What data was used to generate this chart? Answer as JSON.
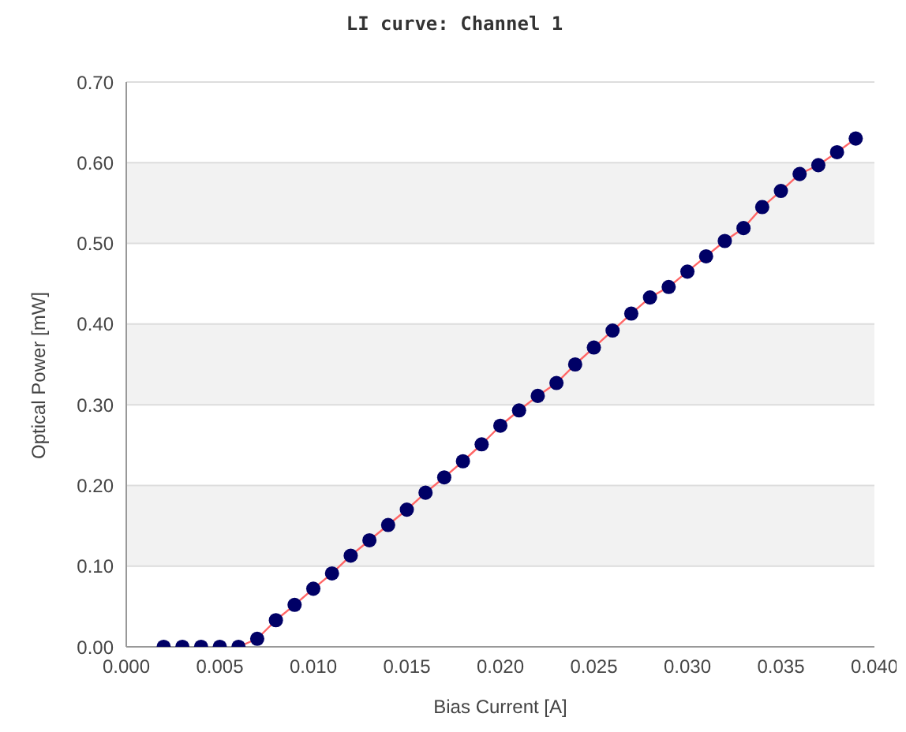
{
  "chart_data": {
    "type": "line",
    "title": "LI curve: Channel 1",
    "xlabel": "Bias Current [A]",
    "ylabel": "Optical Power [mW]",
    "x": [
      0.002,
      0.003,
      0.004,
      0.005,
      0.006,
      0.007,
      0.008,
      0.009,
      0.01,
      0.011,
      0.012,
      0.013,
      0.014,
      0.015,
      0.016,
      0.017,
      0.018,
      0.019,
      0.02,
      0.021,
      0.022,
      0.023,
      0.024,
      0.025,
      0.026,
      0.027,
      0.028,
      0.029,
      0.03,
      0.031,
      0.032,
      0.033,
      0.034,
      0.035,
      0.036,
      0.037,
      0.038,
      0.039
    ],
    "series": [
      {
        "color": "#ff6666",
        "marker": "none",
        "values": [
          null,
          null,
          null,
          null,
          0,
          0.01,
          0.033,
          0.052,
          0.072,
          0.091,
          0.113,
          0.132,
          0.151,
          0.17,
          0.191,
          0.21,
          0.23,
          0.251,
          0.274,
          0.293,
          0.311,
          0.327,
          0.35,
          0.371,
          0.392,
          0.413,
          0.433,
          0.446,
          0.465,
          0.484,
          0.503,
          0.519,
          0.545,
          0.565,
          0.586,
          0.597,
          0.613,
          0.63
        ]
      },
      {
        "type": "scatter",
        "color": "#000066",
        "marker": "circle",
        "values": [
          0,
          0,
          0,
          0,
          0,
          0.01,
          0.033,
          0.052,
          0.072,
          0.091,
          0.113,
          0.132,
          0.151,
          0.17,
          0.191,
          0.21,
          0.23,
          0.251,
          0.274,
          0.293,
          0.311,
          0.327,
          0.35,
          0.371,
          0.392,
          0.413,
          0.433,
          0.446,
          0.465,
          0.484,
          0.503,
          0.519,
          0.545,
          0.565,
          0.586,
          0.597,
          0.613,
          0.63
        ]
      }
    ],
    "xlim": [
      0,
      0.04
    ],
    "xticks": [
      {
        "value": 0,
        "label": "0.000"
      },
      {
        "value": 0.005,
        "label": "0.005"
      },
      {
        "value": 0.01,
        "label": "0.010"
      },
      {
        "value": 0.015,
        "label": "0.015"
      },
      {
        "value": 0.02,
        "label": "0.020"
      },
      {
        "value": 0.025,
        "label": "0.025"
      },
      {
        "value": 0.03,
        "label": "0.030"
      },
      {
        "value": 0.035,
        "label": "0.035"
      },
      {
        "value": 0.04,
        "label": "0.040"
      }
    ],
    "ylim": [
      0,
      0.7
    ],
    "yticks": [
      {
        "value": 0,
        "label": "0.00"
      },
      {
        "value": 0.1,
        "label": "0.10"
      },
      {
        "value": 0.2,
        "label": "0.20"
      },
      {
        "value": 0.3,
        "label": "0.30"
      },
      {
        "value": 0.4,
        "label": "0.40"
      },
      {
        "value": 0.5,
        "label": "0.50"
      },
      {
        "value": 0.6,
        "label": "0.60"
      },
      {
        "value": 0.7,
        "label": "0.70"
      }
    ],
    "grid": "y",
    "legend": false
  }
}
